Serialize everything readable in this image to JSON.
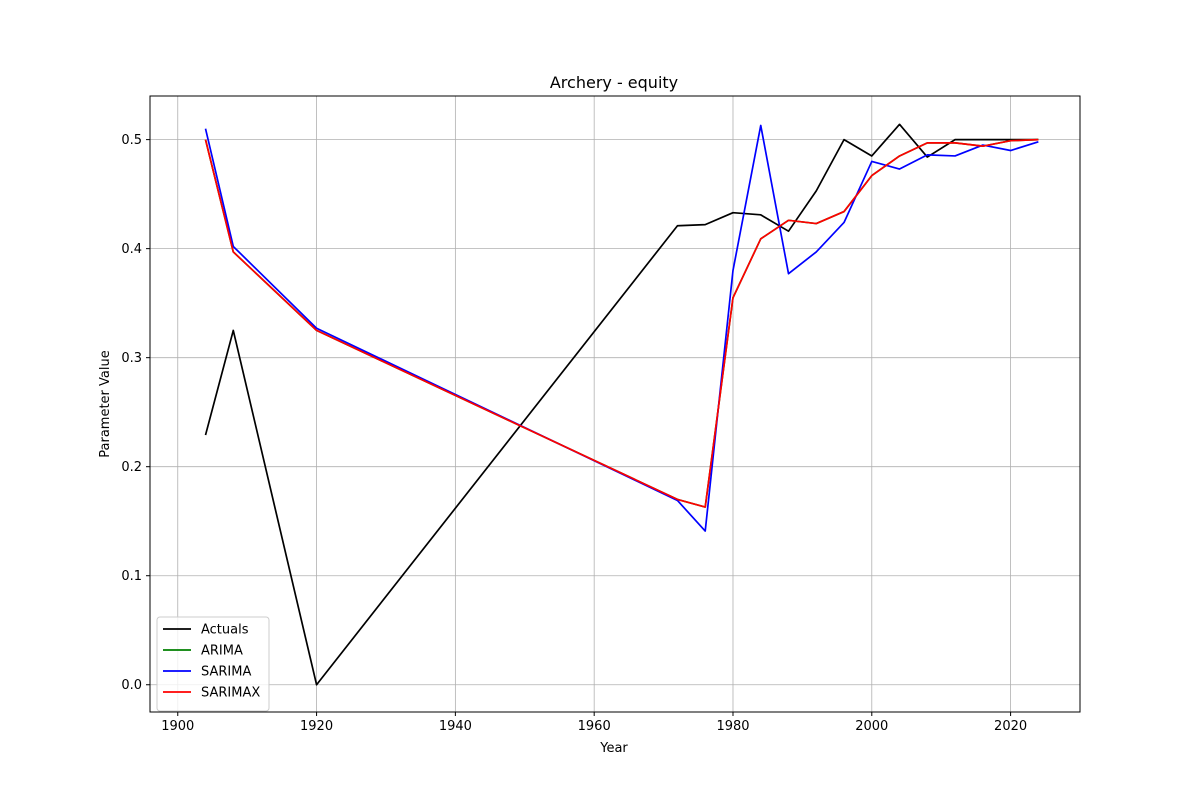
{
  "chart_data": {
    "type": "line",
    "title": "Archery - equity",
    "xlabel": "Year",
    "ylabel": "Parameter Value",
    "xlim": [
      1896,
      2030
    ],
    "ylim": [
      -0.025,
      0.54
    ],
    "xticks": [
      1900,
      1920,
      1940,
      1960,
      1980,
      2000,
      2020
    ],
    "yticks": [
      "0.0",
      "0.1",
      "0.2",
      "0.3",
      "0.4",
      "0.5"
    ],
    "grid": true,
    "legend_position": "lower-left",
    "series": [
      {
        "name": "Actuals",
        "color": "#000000",
        "points": [
          [
            1904,
            0.229
          ],
          [
            1908,
            0.325
          ],
          [
            1920,
            0.0
          ],
          [
            1972,
            0.421
          ],
          [
            1976,
            0.422
          ],
          [
            1980,
            0.433
          ],
          [
            1984,
            0.431
          ],
          [
            1988,
            0.416
          ],
          [
            1992,
            0.453
          ],
          [
            1996,
            0.5
          ],
          [
            2000,
            0.485
          ],
          [
            2004,
            0.514
          ],
          [
            2008,
            0.484
          ],
          [
            2012,
            0.5
          ],
          [
            2016,
            0.5
          ],
          [
            2020,
            0.5
          ],
          [
            2024,
            0.5
          ]
        ]
      },
      {
        "name": "ARIMA",
        "color": "#008000",
        "points": [
          [
            1904,
            0.5
          ],
          [
            1908,
            0.397
          ],
          [
            1920,
            0.325
          ],
          [
            1972,
            0.17
          ],
          [
            1976,
            0.163
          ],
          [
            1980,
            0.355
          ],
          [
            1984,
            0.409
          ],
          [
            1988,
            0.426
          ],
          [
            1992,
            0.423
          ],
          [
            1996,
            0.434
          ],
          [
            2000,
            0.467
          ],
          [
            2004,
            0.485
          ],
          [
            2008,
            0.497
          ],
          [
            2012,
            0.497
          ],
          [
            2016,
            0.494
          ],
          [
            2020,
            0.499
          ],
          [
            2024,
            0.5
          ]
        ]
      },
      {
        "name": "SARIMA",
        "color": "#0000ff",
        "points": [
          [
            1904,
            0.51
          ],
          [
            1908,
            0.402
          ],
          [
            1920,
            0.327
          ],
          [
            1972,
            0.169
          ],
          [
            1976,
            0.141
          ],
          [
            1980,
            0.38
          ],
          [
            1984,
            0.513
          ],
          [
            1988,
            0.377
          ],
          [
            1992,
            0.397
          ],
          [
            1996,
            0.424
          ],
          [
            2000,
            0.48
          ],
          [
            2004,
            0.473
          ],
          [
            2008,
            0.486
          ],
          [
            2012,
            0.485
          ],
          [
            2016,
            0.495
          ],
          [
            2020,
            0.49
          ],
          [
            2024,
            0.498
          ]
        ]
      },
      {
        "name": "SARIMAX",
        "color": "#ff0000",
        "points": [
          [
            1904,
            0.5
          ],
          [
            1908,
            0.397
          ],
          [
            1920,
            0.325
          ],
          [
            1972,
            0.17
          ],
          [
            1976,
            0.163
          ],
          [
            1980,
            0.355
          ],
          [
            1984,
            0.409
          ],
          [
            1988,
            0.426
          ],
          [
            1992,
            0.423
          ],
          [
            1996,
            0.434
          ],
          [
            2000,
            0.467
          ],
          [
            2004,
            0.485
          ],
          [
            2008,
            0.497
          ],
          [
            2012,
            0.497
          ],
          [
            2016,
            0.494
          ],
          [
            2020,
            0.499
          ],
          [
            2024,
            0.5
          ]
        ]
      }
    ]
  }
}
